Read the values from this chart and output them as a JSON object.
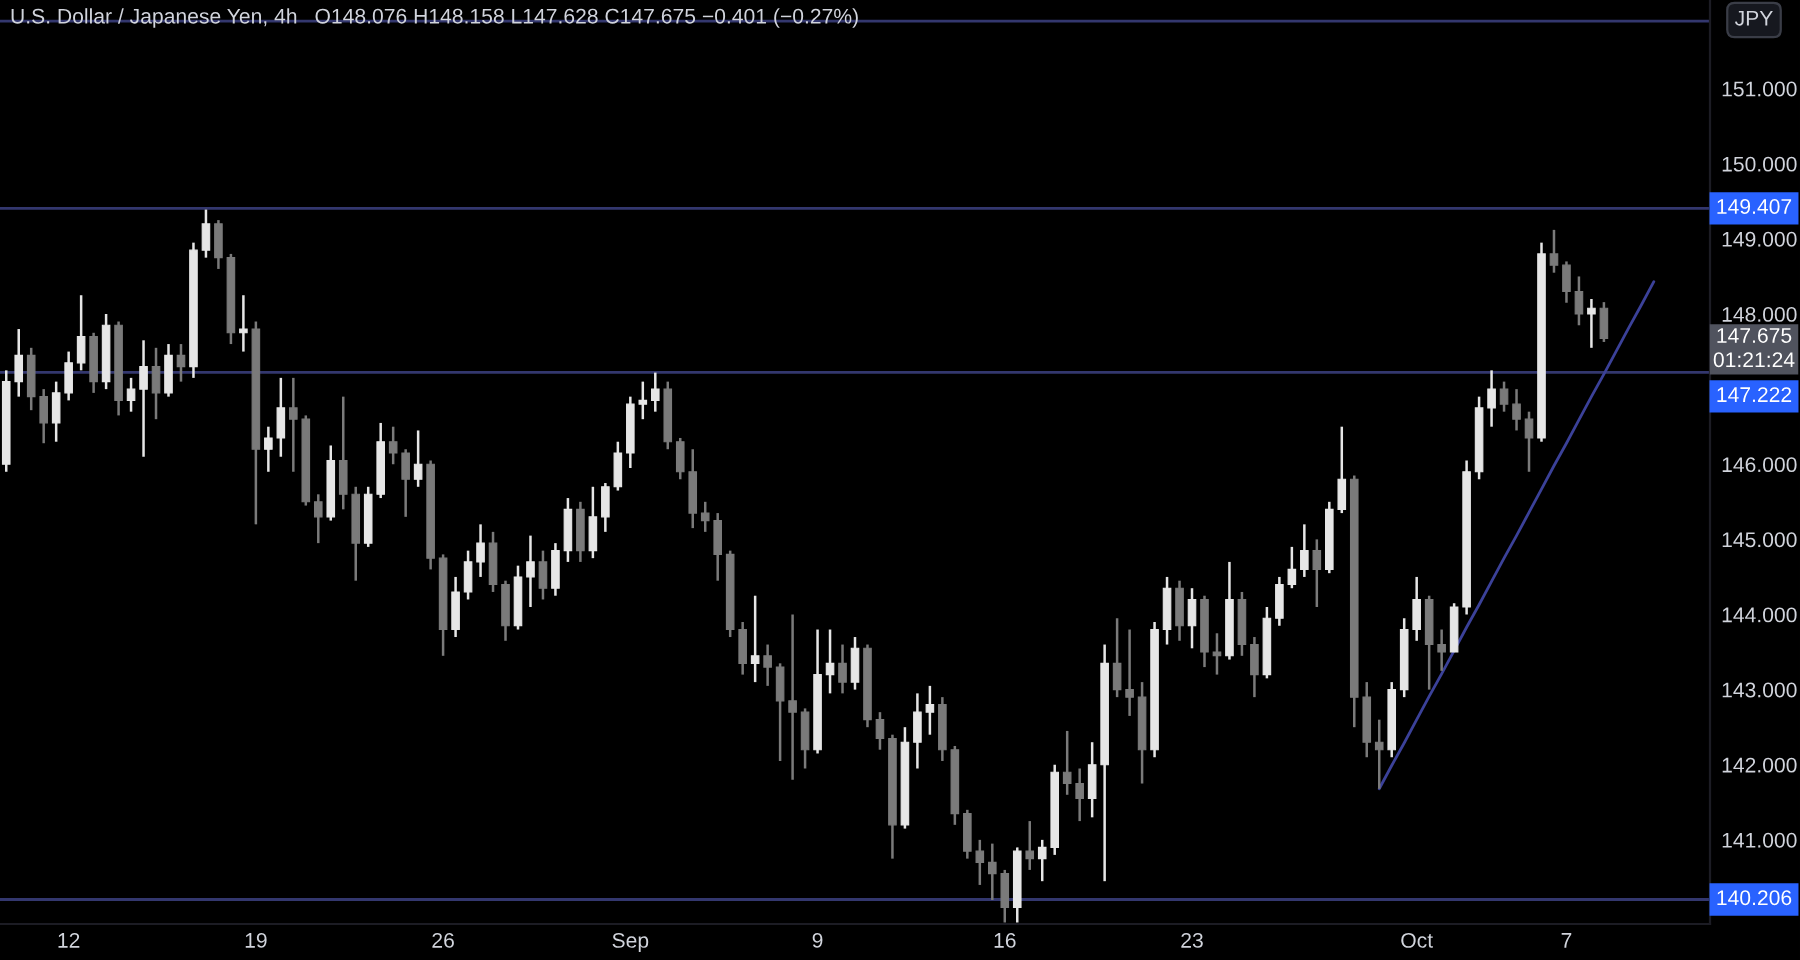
{
  "chart_data": {
    "type": "candlestick",
    "title": "U.S. Dollar / Japanese Yen, 4h",
    "subtitle": "O148.076 H148.158 L147.628 C147.675 −0.401 (−0.27%)",
    "ylabel": "JPY",
    "categories": [
      null,
      null,
      null,
      null,
      null,
      "12",
      null,
      null,
      null,
      null,
      null,
      null,
      null,
      null,
      null,
      null,
      null,
      null,
      null,
      null,
      "19",
      null,
      null,
      null,
      null,
      null,
      null,
      null,
      null,
      null,
      null,
      null,
      null,
      null,
      null,
      "26",
      null,
      null,
      null,
      null,
      null,
      null,
      null,
      null,
      null,
      null,
      null,
      null,
      null,
      null,
      "Sep",
      null,
      null,
      null,
      null,
      null,
      null,
      null,
      null,
      null,
      null,
      null,
      null,
      null,
      null,
      "9",
      null,
      null,
      null,
      null,
      null,
      null,
      null,
      null,
      null,
      null,
      null,
      null,
      null,
      null,
      "16",
      null,
      null,
      null,
      null,
      null,
      null,
      null,
      null,
      null,
      null,
      null,
      null,
      null,
      null,
      "23",
      null,
      null,
      null,
      null,
      null,
      null,
      null,
      null,
      null,
      null,
      null,
      null,
      null,
      null,
      null,
      null,
      null,
      "Oct",
      null,
      null,
      null,
      null,
      null,
      null,
      null,
      null,
      null,
      null,
      null,
      "7",
      null,
      null,
      null,
      null,
      null,
      null,
      null,
      null,
      null,
      null,
      null
    ],
    "ohlc": [
      [
        146.0,
        147.25,
        145.9,
        147.1
      ],
      [
        147.1,
        147.8,
        146.9,
        147.45
      ],
      [
        147.45,
        147.55,
        146.72,
        146.9
      ],
      [
        146.9,
        147.0,
        146.28,
        146.55
      ],
      [
        146.55,
        147.1,
        146.3,
        146.95
      ],
      [
        146.95,
        147.5,
        146.85,
        147.35
      ],
      [
        147.35,
        148.25,
        147.25,
        147.7
      ],
      [
        147.7,
        147.75,
        146.95,
        147.1
      ],
      [
        147.1,
        148.0,
        147.0,
        147.85
      ],
      [
        147.85,
        147.9,
        146.65,
        146.85
      ],
      [
        146.85,
        147.15,
        146.7,
        147.0
      ],
      [
        147.0,
        147.65,
        146.1,
        147.3
      ],
      [
        147.3,
        147.55,
        146.6,
        146.95
      ],
      [
        146.95,
        147.6,
        146.9,
        147.45
      ],
      [
        147.45,
        147.6,
        147.1,
        147.3
      ],
      [
        147.3,
        148.95,
        147.15,
        148.85
      ],
      [
        148.85,
        149.39,
        148.75,
        149.2
      ],
      [
        149.2,
        149.25,
        148.6,
        148.75
      ],
      [
        148.75,
        148.8,
        147.6,
        147.75
      ],
      [
        147.75,
        148.25,
        147.5,
        147.8
      ],
      [
        147.8,
        147.9,
        145.2,
        146.2
      ],
      [
        146.2,
        146.5,
        145.9,
        146.35
      ],
      [
        146.35,
        147.15,
        146.1,
        146.75
      ],
      [
        146.75,
        147.15,
        145.9,
        146.6
      ],
      [
        146.6,
        146.65,
        145.45,
        145.5
      ],
      [
        145.5,
        145.6,
        144.95,
        145.3
      ],
      [
        145.3,
        146.25,
        145.25,
        146.05
      ],
      [
        146.05,
        146.9,
        145.4,
        145.6
      ],
      [
        145.6,
        145.7,
        144.45,
        144.95
      ],
      [
        144.95,
        145.7,
        144.9,
        145.6
      ],
      [
        145.6,
        146.55,
        145.55,
        146.3
      ],
      [
        146.3,
        146.5,
        146.0,
        146.15
      ],
      [
        146.15,
        146.2,
        145.3,
        145.8
      ],
      [
        145.8,
        146.45,
        145.7,
        146.0
      ],
      [
        146.0,
        146.05,
        144.6,
        144.75
      ],
      [
        144.75,
        144.8,
        143.45,
        143.8
      ],
      [
        143.8,
        144.5,
        143.7,
        144.3
      ],
      [
        144.3,
        144.85,
        144.2,
        144.7
      ],
      [
        144.7,
        145.2,
        144.5,
        144.95
      ],
      [
        144.95,
        145.1,
        144.3,
        144.4
      ],
      [
        144.4,
        144.45,
        143.65,
        143.85
      ],
      [
        143.85,
        144.65,
        143.8,
        144.5
      ],
      [
        144.5,
        145.05,
        144.1,
        144.7
      ],
      [
        144.7,
        144.85,
        144.2,
        144.35
      ],
      [
        144.35,
        144.95,
        144.25,
        144.85
      ],
      [
        144.85,
        145.55,
        144.7,
        145.4
      ],
      [
        145.4,
        145.5,
        144.7,
        144.85
      ],
      [
        144.85,
        145.7,
        144.75,
        145.3
      ],
      [
        145.3,
        145.75,
        145.1,
        145.7
      ],
      [
        145.7,
        146.3,
        145.65,
        146.15
      ],
      [
        146.15,
        146.9,
        145.95,
        146.8
      ],
      [
        146.8,
        147.1,
        146.6,
        146.85
      ],
      [
        146.85,
        147.22,
        146.7,
        147.0
      ],
      [
        147.0,
        147.1,
        146.2,
        146.3
      ],
      [
        146.3,
        146.35,
        145.8,
        145.9
      ],
      [
        145.9,
        146.2,
        145.15,
        145.35
      ],
      [
        145.35,
        145.5,
        145.1,
        145.25
      ],
      [
        145.25,
        145.35,
        144.45,
        144.8
      ],
      [
        144.8,
        144.85,
        143.7,
        143.8
      ],
      [
        143.8,
        143.9,
        143.2,
        143.35
      ],
      [
        143.35,
        144.25,
        143.1,
        143.45
      ],
      [
        143.45,
        143.6,
        143.05,
        143.3
      ],
      [
        143.3,
        143.35,
        142.05,
        142.85
      ],
      [
        142.85,
        144.0,
        141.8,
        142.7
      ],
      [
        142.7,
        142.75,
        141.95,
        142.2
      ],
      [
        142.2,
        143.8,
        142.15,
        143.2
      ],
      [
        143.2,
        143.8,
        142.95,
        143.35
      ],
      [
        143.35,
        143.6,
        142.95,
        143.1
      ],
      [
        143.1,
        143.7,
        143.0,
        143.55
      ],
      [
        143.55,
        143.6,
        142.5,
        142.6
      ],
      [
        142.6,
        142.7,
        142.2,
        142.35
      ],
      [
        142.35,
        142.4,
        140.75,
        141.2
      ],
      [
        141.2,
        142.5,
        141.15,
        142.3
      ],
      [
        142.3,
        142.95,
        141.95,
        142.7
      ],
      [
        142.7,
        143.05,
        142.4,
        142.8
      ],
      [
        142.8,
        142.9,
        142.05,
        142.2
      ],
      [
        142.2,
        142.25,
        141.2,
        141.35
      ],
      [
        141.35,
        141.4,
        140.75,
        140.85
      ],
      [
        140.85,
        141.0,
        140.4,
        140.7
      ],
      [
        140.7,
        140.95,
        140.2,
        140.55
      ],
      [
        140.55,
        140.6,
        139.9,
        140.1
      ],
      [
        140.1,
        140.9,
        139.9,
        140.85
      ],
      [
        140.85,
        141.25,
        140.6,
        140.75
      ],
      [
        140.75,
        141.0,
        140.45,
        140.9
      ],
      [
        140.9,
        142.0,
        140.8,
        141.9
      ],
      [
        141.9,
        142.45,
        141.6,
        141.75
      ],
      [
        141.75,
        141.95,
        141.25,
        141.55
      ],
      [
        141.55,
        142.3,
        141.3,
        142.0
      ],
      [
        142.0,
        143.6,
        140.45,
        143.35
      ],
      [
        143.35,
        143.95,
        142.9,
        143.0
      ],
      [
        143.0,
        143.8,
        142.65,
        142.9
      ],
      [
        142.9,
        143.1,
        141.75,
        142.2
      ],
      [
        142.2,
        143.9,
        142.1,
        143.8
      ],
      [
        143.8,
        144.5,
        143.6,
        144.35
      ],
      [
        144.35,
        144.45,
        143.65,
        143.85
      ],
      [
        143.85,
        144.35,
        143.55,
        144.2
      ],
      [
        144.2,
        144.25,
        143.3,
        143.5
      ],
      [
        143.5,
        143.75,
        143.2,
        143.45
      ],
      [
        143.45,
        144.7,
        143.4,
        144.2
      ],
      [
        144.2,
        144.3,
        143.45,
        143.6
      ],
      [
        143.6,
        143.7,
        142.9,
        143.2
      ],
      [
        143.2,
        144.1,
        143.15,
        143.95
      ],
      [
        143.95,
        144.5,
        143.85,
        144.4
      ],
      [
        144.4,
        144.9,
        144.35,
        144.6
      ],
      [
        144.6,
        145.2,
        144.5,
        144.85
      ],
      [
        144.85,
        145.0,
        144.1,
        144.6
      ],
      [
        144.6,
        145.5,
        144.55,
        145.4
      ],
      [
        145.4,
        146.5,
        145.35,
        145.8
      ],
      [
        145.8,
        145.85,
        142.5,
        142.9
      ],
      [
        142.9,
        143.1,
        142.1,
        142.3
      ],
      [
        142.3,
        142.6,
        141.68,
        142.2
      ],
      [
        142.2,
        143.1,
        142.1,
        143.0
      ],
      [
        143.0,
        143.95,
        142.9,
        143.8
      ],
      [
        143.8,
        144.5,
        143.65,
        144.2
      ],
      [
        144.2,
        144.25,
        143.0,
        143.6
      ],
      [
        143.6,
        143.8,
        143.25,
        143.5
      ],
      [
        143.5,
        144.15,
        143.5,
        144.1
      ],
      [
        144.1,
        146.05,
        144.0,
        145.9
      ],
      [
        145.9,
        146.9,
        145.8,
        146.75
      ],
      [
        146.75,
        147.25,
        146.5,
        147.0
      ],
      [
        147.0,
        147.1,
        146.7,
        146.8
      ],
      [
        146.8,
        147.0,
        146.45,
        146.6
      ],
      [
        146.6,
        146.7,
        145.9,
        146.35
      ],
      [
        146.35,
        148.95,
        146.3,
        148.8
      ],
      [
        148.8,
        149.12,
        148.55,
        148.65
      ],
      [
        148.65,
        148.7,
        148.15,
        148.3
      ],
      [
        148.3,
        148.5,
        147.85,
        148.0
      ],
      [
        148.0,
        148.2,
        147.55,
        148.076
      ],
      [
        148.076,
        148.158,
        147.628,
        147.675
      ],
      null,
      null,
      null,
      null,
      null,
      null,
      null,
      null
    ],
    "colors": [
      "#e6e6e6",
      "#e6e6e6",
      "#7a7a7a",
      "#7a7a7a",
      "#e6e6e6",
      "#e6e6e6",
      "#e6e6e6",
      "#7a7a7a",
      "#e6e6e6",
      "#7a7a7a",
      "#e6e6e6",
      "#e6e6e6",
      "#7a7a7a",
      "#e6e6e6",
      "#7a7a7a",
      "#e6e6e6",
      "#e6e6e6",
      "#7a7a7a",
      "#7a7a7a",
      "#e6e6e6",
      "#7a7a7a",
      "#e6e6e6",
      "#e6e6e6",
      "#7a7a7a",
      "#7a7a7a",
      "#7a7a7a",
      "#e6e6e6",
      "#7a7a7a",
      "#7a7a7a",
      "#e6e6e6",
      "#e6e6e6",
      "#7a7a7a",
      "#7a7a7a",
      "#e6e6e6",
      "#7a7a7a",
      "#7a7a7a",
      "#e6e6e6",
      "#e6e6e6",
      "#e6e6e6",
      "#7a7a7a",
      "#7a7a7a",
      "#e6e6e6",
      "#e6e6e6",
      "#7a7a7a",
      "#e6e6e6",
      "#e6e6e6",
      "#7a7a7a",
      "#e6e6e6",
      "#e6e6e6",
      "#e6e6e6",
      "#e6e6e6",
      "#e6e6e6",
      "#e6e6e6",
      "#7a7a7a",
      "#7a7a7a",
      "#7a7a7a",
      "#7a7a7a",
      "#7a7a7a",
      "#7a7a7a",
      "#7a7a7a",
      "#e6e6e6",
      "#7a7a7a",
      "#7a7a7a",
      "#7a7a7a",
      "#7a7a7a",
      "#e6e6e6",
      "#e6e6e6",
      "#7a7a7a",
      "#e6e6e6",
      "#7a7a7a",
      "#7a7a7a",
      "#7a7a7a",
      "#e6e6e6",
      "#e6e6e6",
      "#e6e6e6",
      "#7a7a7a",
      "#7a7a7a",
      "#7a7a7a",
      "#7a7a7a",
      "#7a7a7a",
      "#7a7a7a",
      "#e6e6e6",
      "#7a7a7a",
      "#e6e6e6",
      "#e6e6e6",
      "#7a7a7a",
      "#7a7a7a",
      "#e6e6e6",
      "#e6e6e6",
      "#7a7a7a",
      "#7a7a7a",
      "#7a7a7a",
      "#e6e6e6",
      "#e6e6e6",
      "#7a7a7a",
      "#e6e6e6",
      "#7a7a7a",
      "#7a7a7a",
      "#e6e6e6",
      "#7a7a7a",
      "#7a7a7a",
      "#e6e6e6",
      "#e6e6e6",
      "#e6e6e6",
      "#e6e6e6",
      "#7a7a7a",
      "#e6e6e6",
      "#e6e6e6",
      "#7a7a7a",
      "#7a7a7a",
      "#7a7a7a",
      "#e6e6e6",
      "#e6e6e6",
      "#e6e6e6",
      "#7a7a7a",
      "#7a7a7a",
      "#e6e6e6",
      "#e6e6e6",
      "#e6e6e6",
      "#e6e6e6",
      "#7a7a7a",
      "#7a7a7a",
      "#7a7a7a",
      "#e6e6e6",
      "#7a7a7a",
      "#7a7a7a",
      "#7a7a7a",
      "#e6e6e6",
      "#7a7a7a",
      null,
      null,
      null,
      null,
      null,
      null,
      null,
      null
    ],
    "series": [
      {
        "type": "line",
        "color": "#3b4199",
        "values": [
          null,
          null,
          null,
          null,
          null,
          null,
          null,
          null,
          null,
          null,
          null,
          null,
          null,
          null,
          null,
          null,
          null,
          null,
          null,
          null,
          null,
          null,
          null,
          null,
          null,
          null,
          null,
          null,
          null,
          null,
          null,
          null,
          null,
          null,
          null,
          null,
          null,
          null,
          null,
          null,
          null,
          null,
          null,
          null,
          null,
          null,
          null,
          null,
          null,
          null,
          null,
          null,
          null,
          null,
          null,
          null,
          null,
          null,
          null,
          null,
          null,
          null,
          null,
          null,
          null,
          null,
          null,
          null,
          null,
          null,
          null,
          null,
          null,
          null,
          null,
          null,
          null,
          null,
          null,
          null,
          null,
          null,
          null,
          null,
          null,
          null,
          null,
          null,
          null,
          null,
          null,
          null,
          null,
          null,
          null,
          null,
          null,
          null,
          null,
          null,
          null,
          null,
          null,
          null,
          null,
          null,
          null,
          null,
          null,
          null,
          141.68,
          141.99,
          142.29,
          142.6,
          142.91,
          143.21,
          143.52,
          143.83,
          144.13,
          144.44,
          144.75,
          145.05,
          145.36,
          145.67,
          145.98,
          146.28,
          146.59,
          146.9,
          147.2,
          147.51,
          147.82,
          148.12,
          148.43,
          null,
          null,
          null,
          null
        ]
      }
    ],
    "ylim": [
      139.88,
      152.18
    ],
    "yticks": [
      {
        "value": 141,
        "label": "141.000"
      },
      {
        "value": 142,
        "label": "142.000"
      },
      {
        "value": 143,
        "label": "143.000"
      },
      {
        "value": 144,
        "label": "144.000"
      },
      {
        "value": 145,
        "label": "145.000"
      },
      {
        "value": 146,
        "label": "146.000"
      },
      {
        "value": 148,
        "label": "148.000"
      },
      {
        "value": 149,
        "label": "149.000"
      },
      {
        "value": 150,
        "label": "150.000"
      },
      {
        "value": 151,
        "label": "151.000"
      }
    ],
    "ref_lines": [
      {
        "axis": "y",
        "value": 151.9,
        "label": null,
        "color": "#33376e"
      },
      {
        "axis": "y",
        "value": 149.407,
        "label": "149.407",
        "color": "#33376e"
      },
      {
        "axis": "y",
        "value": 147.222,
        "label": "147.222",
        "color": "#33376e"
      },
      {
        "axis": "y",
        "value": 140.206,
        "label": "140.206",
        "color": "#33376e"
      }
    ],
    "annotations": [
      "147.675\n01:21:24"
    ]
  }
}
